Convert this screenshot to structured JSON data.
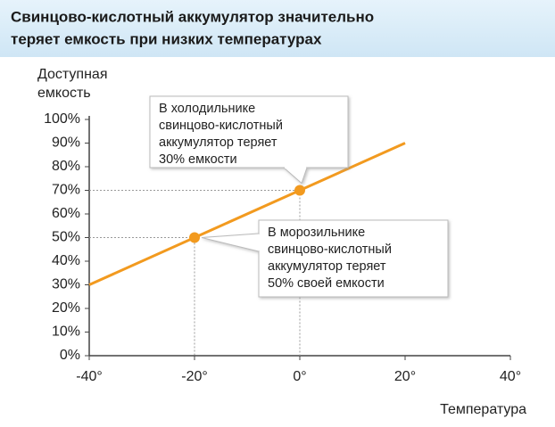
{
  "chart_data": {
    "type": "line",
    "title": [
      "Свинцово-кислотный аккумулятор значительно",
      "теряет емкость при низких температурах"
    ],
    "y_label": [
      "Доступная",
      "емкость"
    ],
    "x_label": "Температура",
    "xlim": [
      -40,
      40
    ],
    "ylim": [
      0,
      100
    ],
    "xticks": [
      {
        "value": -40,
        "label": "-40°"
      },
      {
        "value": -20,
        "label": "-20°"
      },
      {
        "value": 0,
        "label": "0°"
      },
      {
        "value": 20,
        "label": "20°"
      },
      {
        "value": 40,
        "label": "40°"
      }
    ],
    "yticks": [
      {
        "value": 0,
        "label": "0%"
      },
      {
        "value": 10,
        "label": "10%"
      },
      {
        "value": 20,
        "label": "20%"
      },
      {
        "value": 30,
        "label": "30%"
      },
      {
        "value": 40,
        "label": "40%"
      },
      {
        "value": 50,
        "label": "50%"
      },
      {
        "value": 60,
        "label": "60%"
      },
      {
        "value": 70,
        "label": "70%"
      },
      {
        "value": 80,
        "label": "80%"
      },
      {
        "value": 90,
        "label": "90%"
      },
      {
        "value": 100,
        "label": "100%"
      }
    ],
    "series": [
      {
        "color": "#f29a1f",
        "x": [
          -40,
          20
        ],
        "values": [
          30,
          90
        ]
      }
    ],
    "highlights": {
      "x": [
        0,
        -20
      ],
      "values": [
        70,
        50
      ]
    },
    "annotations": [
      {
        "lines": [
          "В холодильнике",
          "свинцово-кислотный",
          "аккумулятор теряет",
          "30% емкости"
        ]
      },
      {
        "lines": [
          "В морозильнике",
          "свинцово-кислотный",
          "аккумулятор теряет",
          "50% своей емкости"
        ]
      }
    ]
  }
}
